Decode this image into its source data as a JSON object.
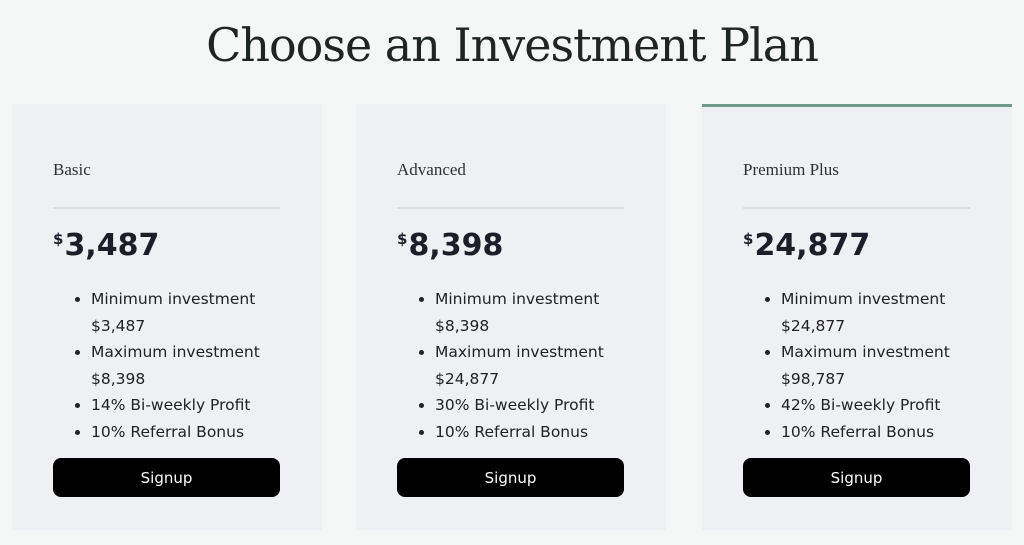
{
  "page": {
    "title": "Choose an Investment Plan"
  },
  "colors": {
    "accent": "#6f9a88",
    "button": "#000000",
    "card": "#eff0f3"
  },
  "plans": [
    {
      "name": "Basic",
      "currency": "$",
      "price": "3,487",
      "features": [
        "Minimum investment $3,487",
        "Maximum investment $8,398",
        "14% Bi-weekly Profit",
        "10% Referral Bonus"
      ],
      "button": "Signup"
    },
    {
      "name": "Advanced",
      "currency": "$",
      "price": "8,398",
      "features": [
        "Minimum investment $8,398",
        "Maximum investment $24,877",
        "30% Bi-weekly Profit",
        "10% Referral Bonus"
      ],
      "button": "Signup"
    },
    {
      "name": "Premium Plus",
      "currency": "$",
      "price": "24,877",
      "features": [
        "Minimum investment $24,877",
        "Maximum investment $98,787",
        "42% Bi-weekly Profit",
        "10% Referral Bonus"
      ],
      "button": "Signup",
      "featured": true
    }
  ]
}
